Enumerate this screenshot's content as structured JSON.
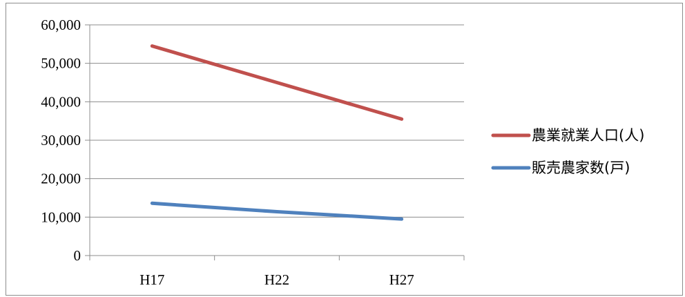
{
  "chart_data": {
    "type": "line",
    "categories": [
      "H17",
      "H22",
      "H27"
    ],
    "series": [
      {
        "name": "農業就業人口(人)",
        "values": [
          54500,
          45000,
          35500
        ],
        "color": "#c0504d"
      },
      {
        "name": "販売農家数(戸)",
        "values": [
          13600,
          11400,
          9500
        ],
        "color": "#4f81bd"
      }
    ],
    "y_ticks": [
      "0",
      "10,000",
      "20,000",
      "30,000",
      "40,000",
      "50,000",
      "60,000"
    ],
    "ylim": [
      0,
      60000
    ],
    "grid": true,
    "legend_position": "right",
    "title": "",
    "xlabel": "",
    "ylabel": ""
  }
}
